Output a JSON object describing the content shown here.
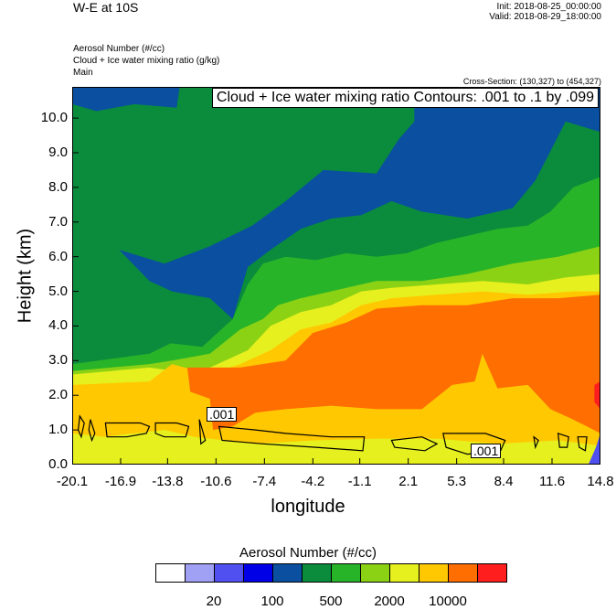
{
  "header": {
    "title": "W-E at 10S",
    "init": "Init: 2018-08-25_00:00:00",
    "valid": "Valid: 2018-08-29_18:00:00",
    "fields": [
      "Aerosol Number   (#/cc)",
      "Cloud + Ice water mixing ratio   (g/kg)",
      "Main"
    ],
    "cross_section": "Cross-Section: (130,327) to (454,327)"
  },
  "contour_label": "Cloud + Ice water mixing ratio Contours: .001 to .1 by .099",
  "contour_line_labels": [
    ".001",
    ".001"
  ],
  "colors": {
    "levels": [
      "#ffffff",
      "#a0a0f5",
      "#5050f0",
      "#0000e6",
      "#0a4fa0",
      "#0a8c3c",
      "#28b428",
      "#8cd214",
      "#e6f01e",
      "#ffc800",
      "#ff6e00",
      "#ff1e1e"
    ],
    "contour": "#000000"
  },
  "chart_data": {
    "type": "heatmap",
    "title": "W-E at 10S",
    "xlabel": "longitude",
    "ylabel": "Height (km)",
    "x_ticks": [
      "-20.1",
      "-16.9",
      "-13.8",
      "-10.6",
      "-7.4",
      "-4.2",
      "-1.1",
      "2.1",
      "5.3",
      "8.4",
      "11.6",
      "14.8"
    ],
    "x_tick_values": [
      -20.1,
      -16.9,
      -13.8,
      -10.6,
      -7.4,
      -4.2,
      -1.1,
      2.1,
      5.3,
      8.4,
      11.6,
      14.8
    ],
    "y_ticks": [
      "0.0",
      "1.0",
      "2.0",
      "3.0",
      "4.0",
      "5.0",
      "6.0",
      "7.0",
      "8.0",
      "9.0",
      "10.0"
    ],
    "y_tick_values": [
      0,
      1,
      2,
      3,
      4,
      5,
      6,
      7,
      8,
      9,
      10
    ],
    "xlim": [
      -20.1,
      14.8
    ],
    "ylim": [
      0,
      10.9
    ],
    "colorbar": {
      "title": "Aerosol Number  (#/cc)",
      "labels": [
        "20",
        "100",
        "500",
        "2000",
        "10000"
      ]
    },
    "regions": [
      {
        "level": 5,
        "outline": [
          [
            -20.1,
            0
          ],
          [
            14.8,
            0
          ],
          [
            14.8,
            10.9
          ],
          [
            -20.1,
            10.9
          ]
        ]
      },
      {
        "level": 4,
        "outline": [
          [
            2.5,
            10.9
          ],
          [
            14.8,
            10.9
          ],
          [
            14.8,
            9.6
          ],
          [
            12.5,
            9.9
          ],
          [
            10.5,
            8.2
          ],
          [
            9,
            7.4
          ],
          [
            6,
            7.1
          ],
          [
            3,
            7.3
          ],
          [
            1,
            7.6
          ],
          [
            -1,
            7.2
          ],
          [
            -3,
            7.1
          ],
          [
            -5,
            6.8
          ],
          [
            -7,
            6.2
          ],
          [
            -8.5,
            5.7
          ],
          [
            -9.5,
            4.2
          ],
          [
            -11,
            4.8
          ],
          [
            -13.5,
            5
          ],
          [
            -15,
            5.3
          ],
          [
            -17,
            6.2
          ],
          [
            -14,
            5.8
          ],
          [
            -11,
            6.3
          ],
          [
            -8.2,
            6.9
          ],
          [
            -6,
            7.6
          ],
          [
            -3.5,
            8.5
          ],
          [
            0,
            8.4
          ],
          [
            1.5,
            9.4
          ],
          [
            2.5,
            9.9
          ]
        ]
      },
      {
        "level": 4,
        "outline": [
          [
            -20.1,
            10.9
          ],
          [
            -13,
            10.9
          ],
          [
            -13.2,
            10.3
          ],
          [
            -16,
            10.4
          ],
          [
            -18.5,
            10.2
          ],
          [
            -20.1,
            10.4
          ]
        ]
      },
      {
        "level": 5,
        "outline": [
          [
            -17.4,
            8.5
          ],
          [
            -15.5,
            8.9
          ],
          [
            -13.5,
            8.3
          ],
          [
            -11.8,
            8.6
          ],
          [
            -10.9,
            7.4
          ],
          [
            -10.5,
            8.3
          ],
          [
            -11.5,
            8.9
          ],
          [
            -14.5,
            9.1
          ],
          [
            -17,
            9.0
          ]
        ]
      },
      {
        "level": 6,
        "outline": [
          [
            -20.1,
            2.9
          ],
          [
            -15,
            3.2
          ],
          [
            -13.6,
            3.5
          ],
          [
            -11.5,
            3.4
          ],
          [
            -9.5,
            4.2
          ],
          [
            -8.5,
            5.2
          ],
          [
            -7.5,
            5.8
          ],
          [
            -6,
            6.0
          ],
          [
            -4,
            5.9
          ],
          [
            -2,
            6.1
          ],
          [
            0,
            6.0
          ],
          [
            2,
            6.1
          ],
          [
            4,
            6.4
          ],
          [
            6,
            6.6
          ],
          [
            8,
            6.8
          ],
          [
            10,
            6.9
          ],
          [
            11.5,
            7.3
          ],
          [
            13,
            8
          ],
          [
            14.8,
            8.3
          ],
          [
            14.8,
            0
          ],
          [
            -20.1,
            0
          ]
        ]
      },
      {
        "level": 7,
        "outline": [
          [
            -20.1,
            2.7
          ],
          [
            -15,
            2.9
          ],
          [
            -13.5,
            3.0
          ],
          [
            -11,
            3.2
          ],
          [
            -9,
            3.9
          ],
          [
            -7.5,
            4.2
          ],
          [
            -6.5,
            4.6
          ],
          [
            -5,
            4.8
          ],
          [
            -3,
            5.0
          ],
          [
            0,
            5.3
          ],
          [
            3,
            5.3
          ],
          [
            6,
            5.5
          ],
          [
            9,
            5.8
          ],
          [
            12,
            6.0
          ],
          [
            14.8,
            6.3
          ],
          [
            14.8,
            0
          ],
          [
            -20.1,
            0
          ]
        ]
      },
      {
        "level": 8,
        "outline": [
          [
            -20.1,
            2.6
          ],
          [
            -15,
            2.8
          ],
          [
            -13.3,
            2.7
          ],
          [
            -11,
            2.8
          ],
          [
            -8.5,
            3.3
          ],
          [
            -7,
            4.0
          ],
          [
            -5,
            4.4
          ],
          [
            -3,
            4.6
          ],
          [
            -1,
            5.0
          ],
          [
            1,
            5.1
          ],
          [
            4,
            5.2
          ],
          [
            7,
            5.3
          ],
          [
            10,
            5.2
          ],
          [
            12.5,
            5.4
          ],
          [
            14.8,
            5.5
          ],
          [
            14.8,
            0
          ],
          [
            -20.1,
            0
          ]
        ]
      },
      {
        "level": 9,
        "outline": [
          [
            -20.1,
            2.3
          ],
          [
            -15,
            2.4
          ],
          [
            -13.5,
            2.9
          ],
          [
            -11,
            2.6
          ],
          [
            -9,
            2.9
          ],
          [
            -7,
            3.3
          ],
          [
            -5,
            3.9
          ],
          [
            -3,
            4.1
          ],
          [
            -1,
            4.6
          ],
          [
            1,
            4.8
          ],
          [
            4,
            4.9
          ],
          [
            7,
            5.0
          ],
          [
            10,
            4.9
          ],
          [
            13,
            5.0
          ],
          [
            14.8,
            5.0
          ],
          [
            14.8,
            0
          ],
          [
            -20.1,
            0
          ]
        ]
      },
      {
        "level": 10,
        "outline": [
          [
            -12.5,
            2.8
          ],
          [
            -9,
            2.8
          ],
          [
            -6,
            3.0
          ],
          [
            -4.2,
            3.8
          ],
          [
            -2,
            4.1
          ],
          [
            0,
            4.5
          ],
          [
            3,
            4.6
          ],
          [
            6,
            4.6
          ],
          [
            9,
            4.8
          ],
          [
            12,
            4.8
          ],
          [
            14.8,
            4.9
          ],
          [
            14.8,
            0.9
          ],
          [
            13,
            1.3
          ],
          [
            11.5,
            1.6
          ],
          [
            10,
            2.3
          ],
          [
            8,
            2.2
          ],
          [
            7,
            3.2
          ],
          [
            6.5,
            2.4
          ],
          [
            5,
            2.3
          ],
          [
            3,
            1.6
          ],
          [
            0,
            1.6
          ],
          [
            -3,
            1.7
          ],
          [
            -6,
            1.6
          ],
          [
            -8,
            1.5
          ],
          [
            -9.5,
            1.1
          ],
          [
            -10.8,
            1.0
          ],
          [
            -11,
            1.9
          ],
          [
            -12.3,
            2.1
          ]
        ]
      },
      {
        "level": 8,
        "outline": [
          [
            -20.1,
            0
          ],
          [
            14.8,
            0
          ],
          [
            14.8,
            0.55
          ],
          [
            12,
            0.7
          ],
          [
            8,
            0.6
          ],
          [
            4,
            0.75
          ],
          [
            0,
            0.75
          ],
          [
            -4,
            0.7
          ],
          [
            -8,
            0.6
          ],
          [
            -12,
            0.8
          ],
          [
            -14,
            1.0
          ],
          [
            -16,
            0.9
          ],
          [
            -18,
            0.8
          ],
          [
            -20.1,
            0.9
          ]
        ]
      },
      {
        "level": 11,
        "outline": [
          [
            14.4,
            1.8
          ],
          [
            14.8,
            1.6
          ],
          [
            14.8,
            2.4
          ],
          [
            14.4,
            2.3
          ]
        ]
      },
      {
        "level": 2,
        "outline": [
          [
            14.0,
            0
          ],
          [
            14.8,
            0
          ],
          [
            14.8,
            0.9
          ],
          [
            14.5,
            0.5
          ]
        ]
      }
    ],
    "contour_lines": [
      [
        [
          -19.6,
          1.4
        ],
        [
          -19.3,
          1.2
        ],
        [
          -19.5,
          0.8
        ],
        [
          -19.7,
          1.0
        ]
      ],
      [
        [
          -18.9,
          1.3
        ],
        [
          -18.6,
          0.9
        ],
        [
          -18.8,
          0.7
        ],
        [
          -19.0,
          1.0
        ]
      ],
      [
        [
          -17.9,
          1.2
        ],
        [
          -16.4,
          1.2
        ],
        [
          -15.6,
          1.2
        ],
        [
          -15.0,
          1.1
        ],
        [
          -15.2,
          0.9
        ],
        [
          -16.5,
          0.8
        ],
        [
          -17.8,
          0.8
        ]
      ],
      [
        [
          -14.6,
          1.2
        ],
        [
          -13.2,
          1.2
        ],
        [
          -12.4,
          1.1
        ],
        [
          -12.6,
          0.8
        ],
        [
          -14.0,
          0.8
        ],
        [
          -14.6,
          0.9
        ]
      ],
      [
        [
          -11.7,
          1.3
        ],
        [
          -11.3,
          0.7
        ],
        [
          -11.6,
          0.6
        ]
      ],
      [
        [
          -10.4,
          1.1
        ],
        [
          -8.0,
          1.0
        ],
        [
          -6.0,
          0.9
        ],
        [
          -3.0,
          0.8
        ],
        [
          -0.8,
          0.8
        ],
        [
          -0.9,
          0.4
        ],
        [
          -4,
          0.5
        ],
        [
          -7.5,
          0.6
        ],
        [
          -10.2,
          0.7
        ]
      ],
      [
        [
          1.0,
          0.7
        ],
        [
          3.0,
          0.8
        ],
        [
          4.0,
          0.6
        ],
        [
          3.2,
          0.4
        ],
        [
          1.2,
          0.5
        ]
      ],
      [
        [
          4.4,
          0.9
        ],
        [
          7.2,
          0.9
        ],
        [
          8.5,
          0.7
        ],
        [
          8.2,
          0.4
        ],
        [
          6.0,
          0.3
        ],
        [
          4.6,
          0.5
        ]
      ],
      [
        [
          10.4,
          0.8
        ],
        [
          10.7,
          0.7
        ],
        [
          10.5,
          0.5
        ]
      ],
      [
        [
          12.0,
          0.9
        ],
        [
          12.7,
          0.8
        ],
        [
          12.6,
          0.5
        ],
        [
          12.1,
          0.5
        ]
      ],
      [
        [
          13.3,
          0.8
        ],
        [
          13.9,
          0.8
        ],
        [
          13.8,
          0.4
        ],
        [
          13.4,
          0.5
        ]
      ]
    ]
  }
}
